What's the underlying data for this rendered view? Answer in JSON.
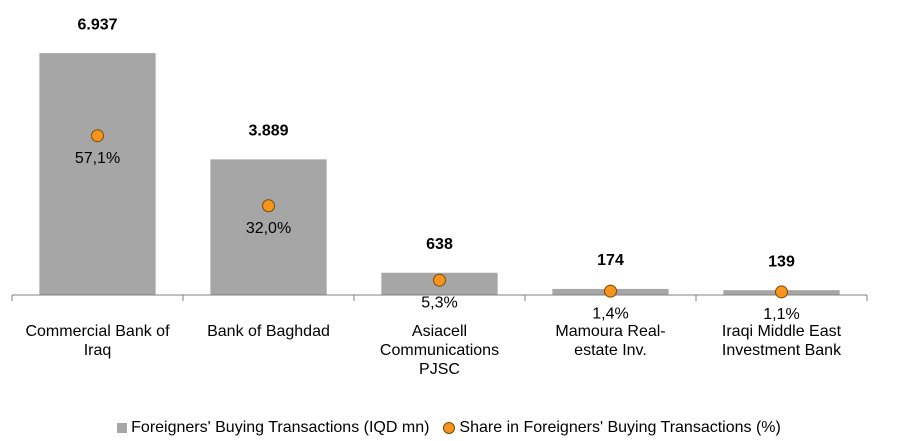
{
  "chart_data": {
    "type": "bar",
    "categories": [
      "Commercial Bank of Iraq",
      "Bank of Baghdad",
      "Asiacell Communications PJSC",
      "Mamoura Real-estate Inv.",
      "Iraqi Middle East Investment Bank"
    ],
    "series": [
      {
        "name": "Foreigners' Buying Transactions (IQD mn)",
        "type": "bar",
        "color": "#a6a6a6",
        "values": [
          6937,
          3889,
          638,
          174,
          139
        ],
        "value_labels": [
          "6.937",
          "3.889",
          "638",
          "174",
          "139"
        ]
      },
      {
        "name": "Share in Foreigners' Buying Transactions (%)",
        "type": "scatter",
        "axis": "y2",
        "color": "#f7941d",
        "values": [
          57.1,
          32.0,
          5.3,
          1.4,
          1.1
        ],
        "value_labels": [
          "57,1%",
          "32,0%",
          "5,3%",
          "1,4%",
          "1,1%"
        ]
      }
    ],
    "ylim": [
      0,
      8000
    ],
    "y2lim": [
      0,
      100
    ],
    "legend": "bottom"
  }
}
